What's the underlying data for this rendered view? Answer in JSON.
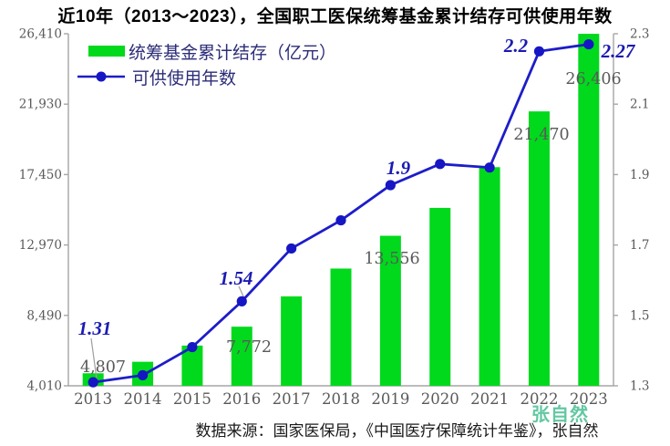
{
  "title": "近10年（2013～2023），全国职工医保统筹基金累计结存可供使用年数",
  "source_note": "数据来源：国家医保局，《中国医疗保障统计年鉴》，张自然",
  "watermark": "张自然",
  "colors": {
    "bar": "#00d91c",
    "line": "#1d1dc9",
    "dot": "#1616c4",
    "blue_label": "#1a1ab2",
    "gray_label": "#595959",
    "axis_line": "#a6a6a6",
    "legend_text": "#2d2d78",
    "title_text": "#000000",
    "watermark": "rgba(38,178,126,0.72)"
  },
  "legend": [
    {
      "label": "统筹基金累计结存（亿元）",
      "type": "bar"
    },
    {
      "label": "可供使用年数",
      "type": "line"
    }
  ],
  "chart_data": {
    "type": "combo-bar-line-dual-axis",
    "title": "近10年（2013～2023），全国职工医保统筹基金累计结存可供使用年数",
    "categories": [
      "2013",
      "2014",
      "2015",
      "2016",
      "2017",
      "2018",
      "2019",
      "2020",
      "2021",
      "2022",
      "2023"
    ],
    "series": [
      {
        "name": "统筹基金累计结存（亿元）",
        "type": "bar",
        "axis": "left",
        "values": [
          4807,
          5540,
          6570,
          7772,
          9700,
          11470,
          13556,
          15330,
          17920,
          21470,
          26406
        ]
      },
      {
        "name": "可供使用年数",
        "type": "line",
        "axis": "right",
        "values": [
          1.31,
          1.33,
          1.41,
          1.54,
          1.69,
          1.77,
          1.87,
          1.93,
          1.92,
          2.25,
          2.27
        ]
      }
    ],
    "bar_value_labels": [
      {
        "year": "2013",
        "text": "4,807"
      },
      {
        "year": "2016",
        "text": "7,772"
      },
      {
        "year": "2019",
        "text": "13,556"
      },
      {
        "year": "2022",
        "text": "21,470"
      },
      {
        "year": "2023",
        "text": "26,406"
      }
    ],
    "line_value_labels": [
      {
        "year": "2013",
        "text": "1.31"
      },
      {
        "year": "2016",
        "text": "1.54"
      },
      {
        "year": "2019",
        "text": "1.9"
      },
      {
        "year": "2022",
        "text": "2.2"
      },
      {
        "year": "2023",
        "text": "2.27"
      }
    ],
    "left_axis": {
      "min": 4010,
      "max": 26410,
      "ticks": [
        "26,410",
        "21,930",
        "17,450",
        "12,970",
        "8,490",
        "4,010"
      ]
    },
    "right_axis": {
      "min": 1.3,
      "max": 2.3,
      "ticks": [
        "2.3",
        "2.1",
        "1.9",
        "1.7",
        "1.5",
        "1.3"
      ]
    },
    "grid": false,
    "legend_position": "top-left-inside"
  }
}
